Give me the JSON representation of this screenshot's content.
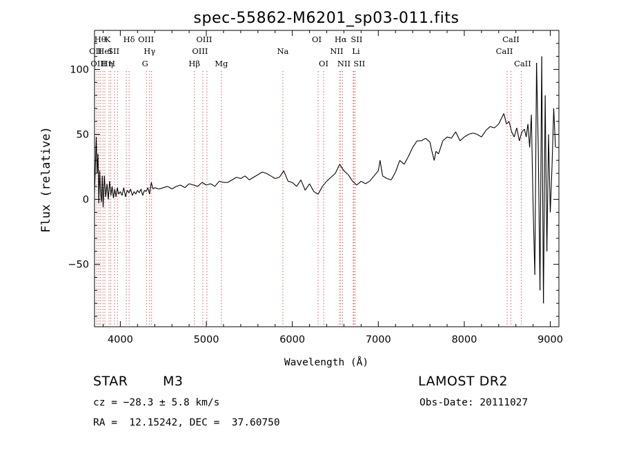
{
  "chart_data": {
    "type": "line",
    "title": "spec-55862-M6201_sp03-011.fits",
    "xlabel": "Wavelength (Å)",
    "ylabel": "Flux (relative)",
    "xlim": [
      3700,
      9100
    ],
    "ylim": [
      -98,
      130
    ],
    "xticks": [
      4000,
      5000,
      6000,
      7000,
      8000,
      9000
    ],
    "yticks": [
      -50,
      0,
      50,
      100
    ],
    "ytick_labels": [
      "−50",
      "0",
      "50",
      "100"
    ],
    "line_color": "#000000",
    "marker_color": "#cc3333",
    "series": [
      {
        "x": [
          3700,
          3710,
          3720,
          3730,
          3740,
          3750,
          3760,
          3770,
          3780,
          3790,
          3800,
          3815,
          3830,
          3845,
          3860,
          3875,
          3890,
          3905,
          3920,
          3935,
          3950,
          3965,
          3980,
          4000,
          4020,
          4040,
          4060,
          4080,
          4100,
          4120,
          4140,
          4160,
          4180,
          4200,
          4220,
          4240,
          4260,
          4280,
          4300,
          4320,
          4340,
          4360,
          4380,
          4400,
          4450,
          4500,
          4550,
          4600,
          4650,
          4700,
          4750,
          4800,
          4850,
          4900,
          4950,
          5000,
          5050,
          5100,
          5150,
          5200,
          5250,
          5300,
          5350,
          5400,
          5450,
          5500,
          5550,
          5600,
          5650,
          5700,
          5750,
          5800,
          5850,
          5900,
          5950,
          6000,
          6050,
          6100,
          6150,
          6200,
          6250,
          6300,
          6350,
          6400,
          6450,
          6500,
          6550,
          6600,
          6650,
          6700,
          6750,
          6800,
          6850,
          6900,
          6950,
          7000,
          7020,
          7050,
          7100,
          7150,
          7200,
          7250,
          7300,
          7350,
          7400,
          7450,
          7500,
          7550,
          7600,
          7620,
          7650,
          7670,
          7700,
          7750,
          7800,
          7850,
          7900,
          7950,
          8000,
          8050,
          8100,
          8150,
          8200,
          8250,
          8300,
          8350,
          8400,
          8430,
          8460,
          8490,
          8520,
          8550,
          8580,
          8610,
          8640,
          8670,
          8700,
          8720,
          8740,
          8760,
          8780,
          8800,
          8820,
          8840,
          8860,
          8880,
          8900,
          8920,
          8940,
          8960,
          8980,
          9000,
          9020,
          9040,
          9060
        ],
        "y": [
          5,
          25,
          48,
          20,
          35,
          -3,
          22,
          5,
          -2,
          18,
          -6,
          18,
          2,
          12,
          0,
          14,
          3,
          10,
          1,
          8,
          2,
          9,
          4,
          6,
          3,
          9,
          2,
          7,
          5,
          8,
          3,
          6,
          4,
          7,
          5,
          8,
          3,
          7,
          6,
          9,
          4,
          13,
          8,
          9,
          8,
          9,
          10,
          8,
          10,
          11,
          9,
          12,
          11,
          10,
          13,
          11,
          12,
          10,
          14,
          13,
          13,
          15,
          17,
          16,
          18,
          15,
          17,
          19,
          21,
          20,
          18,
          16,
          17,
          22,
          14,
          13,
          10,
          15,
          7,
          12,
          6,
          4,
          10,
          14,
          17,
          20,
          27,
          22,
          19,
          14,
          11,
          14,
          12,
          14,
          18,
          22,
          30,
          18,
          16,
          15,
          21,
          30,
          27,
          33,
          40,
          45,
          45,
          47,
          44,
          38,
          30,
          37,
          35,
          45,
          48,
          47,
          52,
          45,
          48,
          50,
          51,
          50,
          48,
          53,
          56,
          55,
          58,
          62,
          66,
          58,
          60,
          52,
          48,
          55,
          45,
          52,
          54,
          48,
          58,
          40,
          65,
          -5,
          -58,
          105,
          40,
          -70,
          110,
          -80,
          80,
          -40,
          50,
          -10,
          25,
          70,
          40
        ]
      }
    ],
    "lines": [
      {
        "x": 3727,
        "label": "OII",
        "row": 1,
        "dx": -2
      },
      {
        "x": 3750,
        "label": "Hθ",
        "row": 0,
        "dx": 2
      },
      {
        "x": 3771,
        "label": "OIII",
        "row": 2,
        "dx": -3
      },
      {
        "x": 3798,
        "label": "Hη",
        "row": 2,
        "dx": 6
      },
      {
        "x": 3820,
        "label": "HeI",
        "row": 1,
        "dx": 0
      },
      {
        "x": 3869,
        "label": "K",
        "row": 0,
        "dx": -2
      },
      {
        "x": 3889,
        "label": "SII",
        "row": 1,
        "dx": 4
      },
      {
        "x": 3933,
        "label": "H",
        "row": 2,
        "dx": -4
      },
      {
        "x": 3968,
        "label": "",
        "row": 2,
        "dx": 0
      },
      {
        "x": 4070,
        "label": "",
        "row": 1,
        "dx": 0
      },
      {
        "x": 4102,
        "label": "Hδ",
        "row": 0,
        "dx": 0
      },
      {
        "x": 4304,
        "label": "G",
        "row": 2,
        "dx": -2
      },
      {
        "x": 4340,
        "label": "Hγ",
        "row": 1,
        "dx": 0
      },
      {
        "x": 4363,
        "label": "OIII",
        "row": 0,
        "dx": -8
      },
      {
        "x": 4861,
        "label": "Hβ",
        "row": 2,
        "dx": 0
      },
      {
        "x": 4959,
        "label": "OIII",
        "row": 1,
        "dx": -4
      },
      {
        "x": 5007,
        "label": "OIII",
        "row": 0,
        "dx": -4
      },
      {
        "x": 5175,
        "label": "Mg",
        "row": 2,
        "dx": 0
      },
      {
        "x": 5890,
        "label": "Na",
        "row": 1,
        "dx": 0
      },
      {
        "x": 6300,
        "label": "OI",
        "row": 0,
        "dx": -2
      },
      {
        "x": 6364,
        "label": "OI",
        "row": 2,
        "dx": 0
      },
      {
        "x": 6548,
        "label": "NII",
        "row": 1,
        "dx": -4
      },
      {
        "x": 6563,
        "label": "Hα",
        "row": 0,
        "dx": 0
      },
      {
        "x": 6584,
        "label": "NII",
        "row": 2,
        "dx": 2
      },
      {
        "x": 6708,
        "label": "Li",
        "row": 1,
        "dx": 4
      },
      {
        "x": 6716,
        "label": "SII",
        "row": 0,
        "dx": 4
      },
      {
        "x": 6731,
        "label": "SII",
        "row": 2,
        "dx": 6
      },
      {
        "x": 8498,
        "label": "CaII",
        "row": 1,
        "dx": -4
      },
      {
        "x": 8542,
        "label": "CaII",
        "row": 0,
        "dx": 0
      },
      {
        "x": 8662,
        "label": "CaII",
        "row": 2,
        "dx": 2
      }
    ]
  },
  "info": {
    "object_class": "STAR",
    "subclass": "M3",
    "survey": "LAMOST DR2",
    "redshift_line": "cz = −28.3 ± 5.8 km/s",
    "obs_date_line": "Obs-Date: 20111027",
    "coords_line": "RA =  12.15242, DEC =  37.60750"
  }
}
